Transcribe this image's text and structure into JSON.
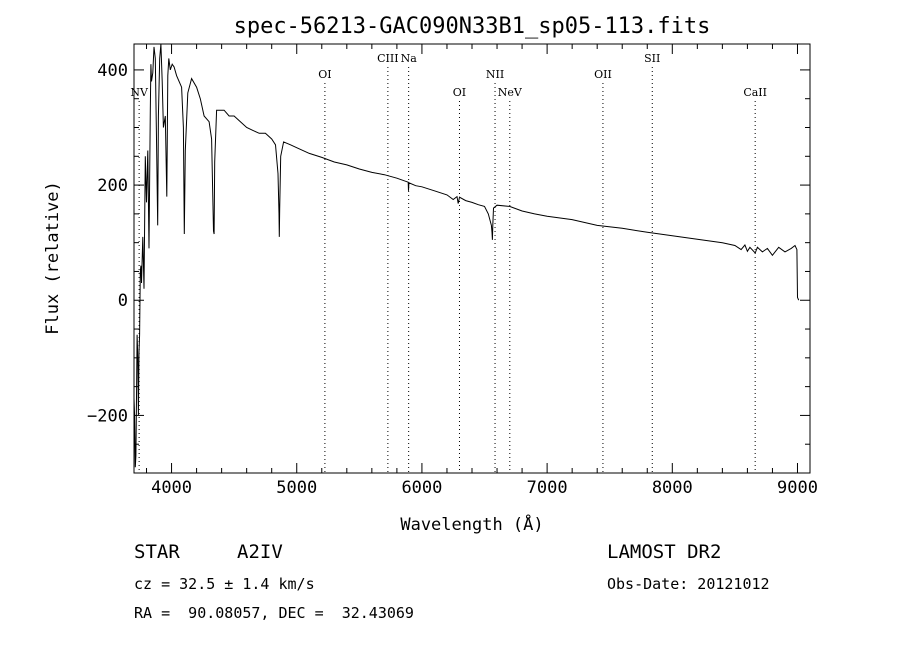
{
  "chart_data": {
    "type": "line",
    "title": "spec-56213-GAC090N33B1_sp05-113.fits",
    "xlabel": "Wavelength (Å)",
    "ylabel": "Flux (relative)",
    "xlim": [
      3700,
      9100
    ],
    "ylim": [
      -300,
      445
    ],
    "x_ticks": [
      4000,
      5000,
      6000,
      7000,
      8000,
      9000
    ],
    "y_ticks": [
      -200,
      0,
      200,
      400
    ],
    "grid": false,
    "series": [
      {
        "x": [
          3700,
          3705,
          3710,
          3715,
          3720,
          3725,
          3730,
          3735,
          3740,
          3745,
          3750,
          3755,
          3760,
          3770,
          3780,
          3790,
          3800,
          3810,
          3820,
          3830,
          3835,
          3840,
          3850,
          3860,
          3870,
          3880,
          3889,
          3895,
          3905,
          3915,
          3925,
          3935,
          3950,
          3962,
          3970,
          3978,
          3990,
          4005,
          4020,
          4040,
          4060,
          4080,
          4095,
          4102,
          4110,
          4130,
          4160,
          4200,
          4230,
          4260,
          4300,
          4320,
          4335,
          4340,
          4345,
          4360,
          4380,
          4420,
          4460,
          4500,
          4550,
          4600,
          4650,
          4700,
          4750,
          4800,
          4830,
          4850,
          4858,
          4861,
          4864,
          4872,
          4895,
          4950,
          5000,
          5100,
          5200,
          5300,
          5400,
          5500,
          5600,
          5700,
          5800,
          5890,
          5893,
          5896,
          5950,
          6000,
          6100,
          6200,
          6250,
          6280,
          6290,
          6300,
          6350,
          6400,
          6450,
          6500,
          6530,
          6555,
          6560,
          6563,
          6566,
          6572,
          6600,
          6700,
          6800,
          6900,
          7000,
          7200,
          7400,
          7600,
          7800,
          8000,
          8200,
          8400,
          8500,
          8550,
          8580,
          8600,
          8620,
          8662,
          8680,
          8720,
          8760,
          8800,
          8850,
          8900,
          8950,
          8980,
          8995,
          9000,
          9010
        ],
        "y": [
          -170,
          -200,
          -290,
          -270,
          -170,
          -60,
          -100,
          -200,
          -90,
          -60,
          50,
          60,
          30,
          110,
          20,
          250,
          170,
          260,
          90,
          330,
          410,
          380,
          395,
          440,
          420,
          280,
          130,
          320,
          420,
          460,
          380,
          300,
          320,
          180,
          390,
          420,
          400,
          410,
          405,
          390,
          380,
          370,
          300,
          115,
          260,
          360,
          385,
          370,
          350,
          320,
          310,
          280,
          120,
          115,
          240,
          330,
          330,
          330,
          320,
          320,
          310,
          300,
          295,
          290,
          290,
          280,
          270,
          220,
          150,
          110,
          160,
          250,
          275,
          270,
          265,
          255,
          248,
          240,
          235,
          228,
          222,
          218,
          212,
          205,
          190,
          204,
          199,
          197,
          190,
          183,
          175,
          180,
          168,
          179,
          173,
          170,
          166,
          163,
          150,
          130,
          118,
          105,
          130,
          160,
          165,
          163,
          155,
          150,
          146,
          140,
          130,
          125,
          118,
          112,
          106,
          100,
          95,
          88,
          96,
          85,
          92,
          82,
          92,
          84,
          90,
          78,
          92,
          84,
          90,
          95,
          88,
          5,
          0
        ]
      }
    ],
    "line_markers": [
      {
        "label": "NV",
        "x": 3741,
        "row": "low"
      },
      {
        "label": "OI",
        "x": 5225,
        "row": "mid"
      },
      {
        "label": "CIII",
        "x": 5728,
        "row": "high"
      },
      {
        "label": "Na",
        "x": 5894,
        "row": "high"
      },
      {
        "label": "OI",
        "x": 6300,
        "row": "low"
      },
      {
        "label": "NII",
        "x": 6584,
        "row": "mid"
      },
      {
        "label": "NeV",
        "x": 6702,
        "row": "low"
      },
      {
        "label": "OII",
        "x": 7446,
        "row": "mid"
      },
      {
        "label": "SII",
        "x": 7840,
        "row": "high"
      },
      {
        "label": "CaII",
        "x": 8662,
        "row": "low"
      }
    ]
  },
  "info": {
    "object_type": "STAR",
    "subclass": "A2IV",
    "cz": "cz = 32.5 ± 1.4 km/s",
    "coords": "RA =  90.08057, DEC =  32.43069",
    "survey": "LAMOST DR2",
    "obs_date": "Obs-Date: 20121012"
  }
}
